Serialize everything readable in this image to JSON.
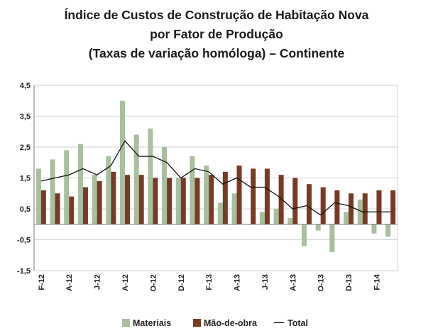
{
  "chart_data": {
    "type": "bar",
    "title_lines": [
      "Índice de Custos de Construção de Habitação Nova",
      "por Fator de Produção",
      "(Taxas de variação homóloga) – Continente"
    ],
    "xlabel": "",
    "ylabel": "",
    "ylim": [
      -1.5,
      4.5
    ],
    "y_ticks": [
      "4,5",
      "3,5",
      "2,5",
      "1,5",
      "0,5",
      "-0,5",
      "-1,5"
    ],
    "y_tick_values": [
      4.5,
      3.5,
      2.5,
      1.5,
      0.5,
      -0.5,
      -1.5
    ],
    "x_tick_labels": [
      "F-12",
      "A-12",
      "J-12",
      "A-12",
      "O-12",
      "D-12",
      "F-13",
      "A-13",
      "J-13",
      "A-13",
      "O-13",
      "D-13",
      "F-14"
    ],
    "x_tick_indices": [
      0,
      2,
      4,
      6,
      8,
      10,
      12,
      14,
      16,
      18,
      20,
      22,
      24
    ],
    "grid": true,
    "legend_position": "bottom",
    "series": [
      {
        "name": "Materiais",
        "kind": "bar",
        "color": "#a9bfa0",
        "values": [
          1.8,
          2.1,
          2.4,
          2.6,
          1.6,
          2.2,
          4.0,
          2.9,
          3.1,
          2.5,
          1.5,
          2.2,
          1.9,
          0.7,
          1.0,
          0.0,
          0.4,
          0.5,
          0.2,
          -0.7,
          -0.2,
          -0.9,
          0.4,
          0.8,
          -0.3,
          -0.4
        ]
      },
      {
        "name": "Mão-de-obra",
        "kind": "bar",
        "color": "#7a3a22",
        "values": [
          1.1,
          1.0,
          0.9,
          1.2,
          1.4,
          1.7,
          1.6,
          1.6,
          1.5,
          1.5,
          1.5,
          1.5,
          1.6,
          1.7,
          1.9,
          1.8,
          1.8,
          1.6,
          1.5,
          1.3,
          1.2,
          1.1,
          1.0,
          1.0,
          1.1,
          1.1
        ]
      },
      {
        "name": "Total",
        "kind": "line",
        "color": "#111111",
        "values": [
          1.4,
          1.5,
          1.6,
          1.8,
          1.6,
          1.9,
          2.7,
          2.2,
          2.2,
          2.0,
          1.5,
          1.8,
          1.7,
          1.3,
          1.5,
          1.2,
          1.2,
          0.9,
          0.5,
          0.6,
          0.3,
          0.7,
          0.6,
          0.4,
          0.4,
          0.4
        ]
      }
    ]
  }
}
